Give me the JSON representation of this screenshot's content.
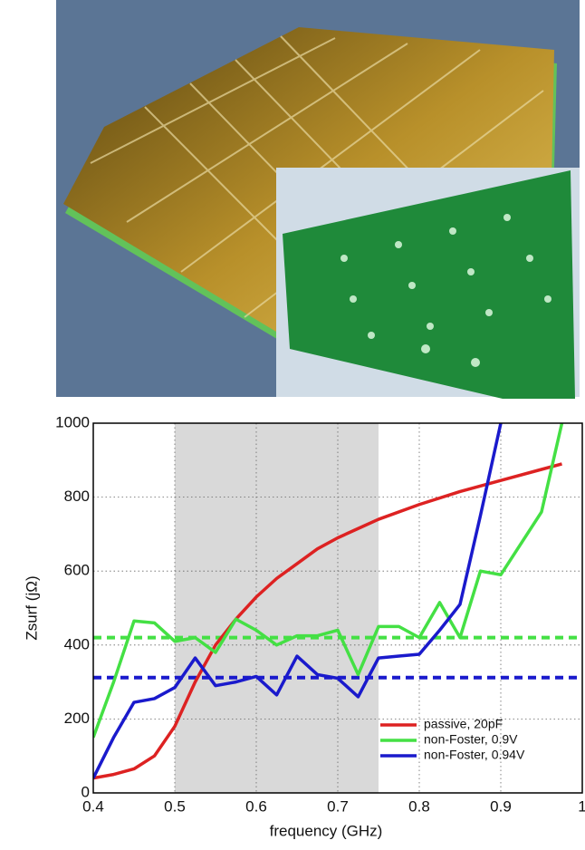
{
  "chart_data": {
    "type": "line",
    "xlabel": "frequency (GHz)",
    "ylabel": "Zsurf (jΩ)",
    "xlim": [
      0.4,
      1
    ],
    "ylim": [
      0,
      1000
    ],
    "xticks": [
      0.4,
      0.5,
      0.6,
      0.7,
      0.8,
      0.9,
      1
    ],
    "yticks": [
      0,
      200,
      400,
      600,
      800,
      1000
    ],
    "grid": true,
    "legend": "lower right",
    "shaded_region": [
      0.5,
      0.75
    ],
    "reference_lines": [
      {
        "value": 420,
        "color": "#44e044"
      },
      {
        "value": 312,
        "color": "#1a1acc"
      }
    ],
    "series": [
      {
        "name": "passive, 20pF",
        "color": "#dd2222",
        "x": [
          0.4,
          0.425,
          0.45,
          0.475,
          0.5,
          0.525,
          0.55,
          0.575,
          0.6,
          0.625,
          0.65,
          0.675,
          0.7,
          0.725,
          0.75,
          0.8,
          0.85,
          0.9,
          0.95,
          0.975
        ],
        "values": [
          40,
          50,
          65,
          100,
          180,
          300,
          400,
          470,
          530,
          580,
          620,
          660,
          690,
          715,
          740,
          780,
          815,
          845,
          875,
          890
        ]
      },
      {
        "name": "non-Foster, 0.9V",
        "color": "#44e044",
        "x": [
          0.4,
          0.425,
          0.45,
          0.475,
          0.5,
          0.525,
          0.55,
          0.575,
          0.6,
          0.625,
          0.65,
          0.675,
          0.7,
          0.725,
          0.75,
          0.775,
          0.8,
          0.825,
          0.85,
          0.875,
          0.9,
          0.95,
          0.975
        ],
        "values": [
          150,
          300,
          465,
          460,
          410,
          420,
          380,
          470,
          440,
          400,
          425,
          425,
          440,
          320,
          450,
          450,
          420,
          515,
          420,
          600,
          590,
          760,
          1000
        ]
      },
      {
        "name": "non-Foster, 0.94V",
        "color": "#1a1acc",
        "x": [
          0.4,
          0.425,
          0.45,
          0.475,
          0.5,
          0.525,
          0.55,
          0.575,
          0.6,
          0.625,
          0.65,
          0.675,
          0.7,
          0.725,
          0.75,
          0.775,
          0.8,
          0.825,
          0.85,
          0.875,
          0.9
        ],
        "values": [
          40,
          150,
          245,
          255,
          285,
          365,
          290,
          300,
          315,
          265,
          370,
          320,
          310,
          260,
          365,
          370,
          375,
          440,
          510,
          750,
          1000
        ]
      }
    ]
  }
}
